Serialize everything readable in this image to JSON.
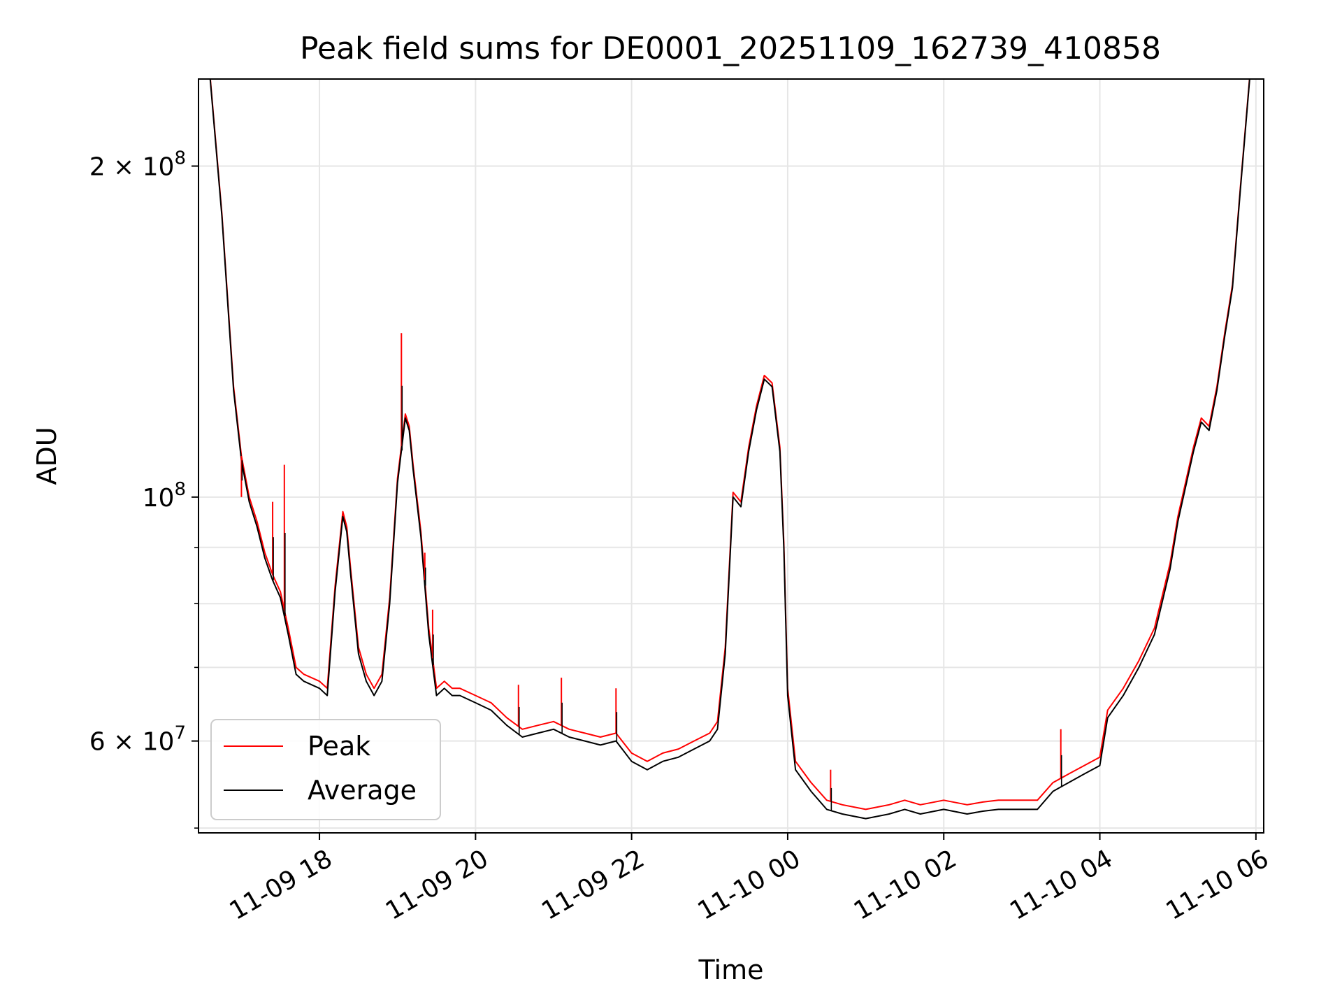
{
  "chart_data": {
    "type": "line",
    "title": "Peak field sums for DE0001_20251109_162739_410858",
    "xlabel": "Time",
    "ylabel": "ADU",
    "y_scale": "log",
    "xlim": [
      16.45,
      30.1
    ],
    "ylim": [
      49500000,
      240000000
    ],
    "grid": true,
    "x_unit": "hours since 2025-11-09 00:00",
    "x_ticks": [
      {
        "value": 18,
        "label": "11-09 18"
      },
      {
        "value": 20,
        "label": "11-09 20"
      },
      {
        "value": 22,
        "label": "11-09 22"
      },
      {
        "value": 24,
        "label": "11-10 00"
      },
      {
        "value": 26,
        "label": "11-10 02"
      },
      {
        "value": 28,
        "label": "11-10 04"
      },
      {
        "value": 30,
        "label": "11-10 06"
      }
    ],
    "y_ticks": [
      {
        "value": 60000000,
        "label": "6 × 10",
        "exp": "7"
      },
      {
        "value": 100000000,
        "label": "10",
        "exp": "8"
      },
      {
        "value": 200000000,
        "label": "2 × 10",
        "exp": "8"
      }
    ],
    "y_minor_ticks": [
      50000000,
      70000000,
      80000000,
      90000000
    ],
    "legend": {
      "position": "lower-left",
      "entries": [
        "Peak",
        "Average"
      ]
    },
    "series": [
      {
        "name": "Average",
        "color": "#000000",
        "x": [
          16.6,
          16.75,
          16.9,
          17.0,
          17.1,
          17.2,
          17.3,
          17.4,
          17.5,
          17.6,
          17.7,
          17.8,
          18.0,
          18.1,
          18.2,
          18.3,
          18.35,
          18.4,
          18.5,
          18.6,
          18.7,
          18.8,
          18.9,
          19.0,
          19.1,
          19.15,
          19.2,
          19.3,
          19.4,
          19.5,
          19.6,
          19.7,
          19.8,
          20.0,
          20.2,
          20.4,
          20.6,
          20.8,
          21.0,
          21.2,
          21.4,
          21.6,
          21.8,
          22.0,
          22.2,
          22.4,
          22.6,
          22.8,
          23.0,
          23.1,
          23.2,
          23.3,
          23.4,
          23.5,
          23.6,
          23.7,
          23.8,
          23.9,
          23.95,
          24.0,
          24.1,
          24.3,
          24.5,
          24.7,
          25.0,
          25.3,
          25.5,
          25.7,
          26.0,
          26.3,
          26.5,
          26.7,
          27.0,
          27.2,
          27.4,
          27.6,
          27.8,
          28.0,
          28.1,
          28.3,
          28.5,
          28.7,
          28.9,
          29.0,
          29.2,
          29.3,
          29.4,
          29.5,
          29.6,
          29.7,
          29.8,
          29.92
        ],
        "y": [
          240000000,
          180000000,
          125000000,
          108000000,
          99000000,
          94000000,
          88000000,
          84000000,
          81000000,
          75000000,
          69000000,
          68000000,
          67000000,
          66000000,
          82000000,
          96000000,
          93000000,
          85000000,
          72000000,
          68000000,
          66000000,
          68000000,
          80000000,
          103000000,
          118000000,
          115000000,
          106000000,
          92000000,
          75000000,
          66000000,
          67000000,
          66000000,
          66000000,
          65000000,
          64000000,
          62000000,
          60500000,
          61000000,
          61500000,
          60500000,
          60000000,
          59500000,
          60000000,
          57500000,
          56500000,
          57500000,
          58000000,
          59000000,
          60000000,
          61500000,
          72000000,
          100000000,
          98000000,
          110000000,
          120000000,
          128000000,
          126000000,
          110000000,
          90000000,
          66000000,
          56500000,
          54000000,
          52000000,
          51500000,
          51000000,
          51500000,
          52000000,
          51500000,
          52000000,
          51500000,
          51800000,
          52000000,
          52000000,
          52000000,
          54000000,
          55000000,
          56000000,
          57000000,
          63000000,
          66000000,
          70000000,
          75000000,
          86000000,
          95000000,
          110000000,
          117000000,
          115000000,
          125000000,
          140000000,
          155000000,
          190000000,
          240000000
        ]
      },
      {
        "name": "Peak",
        "color": "#ff0000",
        "x": [
          16.6,
          16.75,
          16.9,
          17.0,
          17.1,
          17.2,
          17.3,
          17.4,
          17.5,
          17.6,
          17.7,
          17.8,
          18.0,
          18.1,
          18.2,
          18.3,
          18.35,
          18.4,
          18.5,
          18.6,
          18.7,
          18.8,
          18.9,
          19.0,
          19.1,
          19.15,
          19.2,
          19.3,
          19.4,
          19.5,
          19.6,
          19.7,
          19.8,
          20.0,
          20.2,
          20.4,
          20.6,
          20.8,
          21.0,
          21.2,
          21.4,
          21.6,
          21.8,
          22.0,
          22.2,
          22.4,
          22.6,
          22.8,
          23.0,
          23.1,
          23.2,
          23.3,
          23.4,
          23.5,
          23.6,
          23.7,
          23.8,
          23.9,
          23.95,
          24.0,
          24.1,
          24.3,
          24.5,
          24.7,
          25.0,
          25.3,
          25.5,
          25.7,
          26.0,
          26.3,
          26.5,
          26.7,
          27.0,
          27.2,
          27.4,
          27.6,
          27.8,
          28.0,
          28.1,
          28.3,
          28.5,
          28.7,
          28.9,
          29.0,
          29.2,
          29.3,
          29.4,
          29.5,
          29.6,
          29.7,
          29.8,
          29.92
        ],
        "y": [
          241000000,
          181000000,
          126000000,
          109000000,
          100000000,
          95000000,
          89000000,
          85000000,
          82000000,
          76000000,
          70000000,
          69000000,
          68000000,
          67000000,
          83000000,
          97000000,
          94000000,
          86000000,
          73000000,
          69000000,
          67000000,
          69000000,
          81000000,
          104000000,
          119000000,
          116000000,
          107000000,
          93000000,
          76000000,
          67000000,
          68000000,
          67000000,
          67000000,
          66000000,
          65000000,
          63000000,
          61500000,
          62000000,
          62500000,
          61500000,
          61000000,
          60500000,
          61000000,
          58500000,
          57500000,
          58500000,
          59000000,
          60000000,
          61000000,
          62500000,
          73000000,
          101000000,
          99000000,
          111000000,
          121000000,
          129000000,
          127000000,
          111000000,
          91000000,
          67000000,
          57500000,
          55000000,
          53000000,
          52500000,
          52000000,
          52500000,
          53000000,
          52500000,
          53000000,
          52500000,
          52800000,
          53000000,
          53000000,
          53000000,
          55000000,
          56000000,
          57000000,
          58000000,
          64000000,
          67000000,
          71000000,
          76000000,
          87000000,
          96000000,
          111000000,
          118000000,
          116000000,
          126000000,
          141000000,
          156000000,
          191000000,
          241000000
        ]
      }
    ],
    "spikes": [
      {
        "x": 17.0,
        "y": 100000000
      },
      {
        "x": 17.4,
        "y": 99000000
      },
      {
        "x": 17.55,
        "y": 107000000
      },
      {
        "x": 19.05,
        "y": 141000000
      },
      {
        "x": 19.35,
        "y": 89000000
      },
      {
        "x": 19.45,
        "y": 79000000
      },
      {
        "x": 20.55,
        "y": 67500000
      },
      {
        "x": 21.1,
        "y": 68500000
      },
      {
        "x": 21.8,
        "y": 67000000
      },
      {
        "x": 24.55,
        "y": 56500000
      },
      {
        "x": 27.5,
        "y": 61500000
      }
    ]
  }
}
